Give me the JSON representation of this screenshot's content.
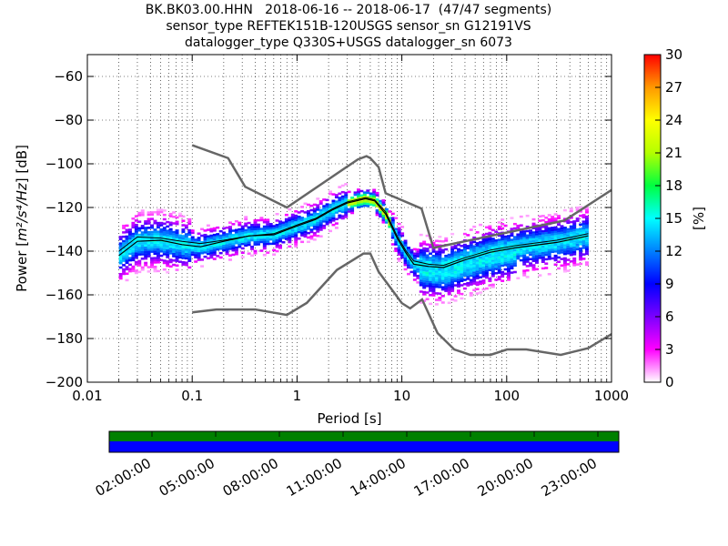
{
  "title_lines": [
    "BK.BK03.00.HHN   2018-06-16 -- 2018-06-17  (47/47 segments)",
    "sensor_type REFTEK151B-120USGS sensor_sn G12191VS",
    "datalogger_type Q330S+USGS datalogger_sn 6073"
  ],
  "chart_data": {
    "type": "heatmap",
    "xlabel": "Period [s]",
    "ylabel_prefix": "Power [",
    "ylabel_math": "m²/s⁴/Hz",
    "ylabel_suffix": "] [dB]",
    "x_scale": "log",
    "xlim": [
      0.01,
      1000
    ],
    "ylim": [
      -200,
      -50
    ],
    "x_ticks": [
      0.01,
      0.1,
      1,
      10,
      100,
      1000
    ],
    "x_tick_labels": [
      "0.01",
      "0.1",
      "1",
      "10",
      "100",
      "1000"
    ],
    "y_ticks": [
      -200,
      -180,
      -160,
      -140,
      -120,
      -100,
      -80,
      -60
    ],
    "y_tick_labels": [
      "−200",
      "−180",
      "−160",
      "−140",
      "−120",
      "−100",
      "−80",
      "−60"
    ],
    "grid": "dotted",
    "colorbar": {
      "label": "[%]",
      "range": [
        0,
        30
      ],
      "ticks": [
        0,
        3,
        6,
        9,
        12,
        15,
        18,
        21,
        24,
        27,
        30
      ],
      "tick_labels": [
        "0",
        "3",
        "6",
        "9",
        "12",
        "15",
        "18",
        "21",
        "24",
        "27",
        "30"
      ],
      "colors": [
        "#ffffff",
        "#ff00ff",
        "#7b00ff",
        "#0000ff",
        "#0080ff",
        "#00ffff",
        "#00ff40",
        "#b4ff00",
        "#ffff00",
        "#ff9900",
        "#ff0000"
      ]
    },
    "noise_model_high": [
      [
        0.1,
        -91.5
      ],
      [
        0.22,
        -97.4
      ],
      [
        0.32,
        -110.5
      ],
      [
        0.8,
        -120
      ],
      [
        3.8,
        -98
      ],
      [
        4.6,
        -96.5
      ],
      [
        5.0,
        -97.4
      ],
      [
        6.0,
        -101.5
      ],
      [
        7.0,
        -113.5
      ],
      [
        15.4,
        -120.5
      ],
      [
        20,
        -138.5
      ],
      [
        354,
        -126
      ],
      [
        1000,
        -112
      ]
    ],
    "noise_model_low": [
      [
        0.1,
        -168
      ],
      [
        0.17,
        -166.7
      ],
      [
        0.4,
        -166.7
      ],
      [
        0.8,
        -169.2
      ],
      [
        1.24,
        -163.7
      ],
      [
        2.4,
        -148.6
      ],
      [
        4.3,
        -141.1
      ],
      [
        5.0,
        -141.1
      ],
      [
        6.0,
        -149.4
      ],
      [
        10,
        -163.8
      ],
      [
        12,
        -166.2
      ],
      [
        15.6,
        -162.1
      ],
      [
        21.9,
        -177.5
      ],
      [
        31.6,
        -185
      ],
      [
        45,
        -187.5
      ],
      [
        70,
        -187.5
      ],
      [
        101,
        -185
      ],
      [
        154,
        -185
      ],
      [
        328,
        -187.5
      ],
      [
        600,
        -184.4
      ],
      [
        1000,
        -178
      ]
    ],
    "mode_curve": [
      [
        0.02,
        -142
      ],
      [
        0.03,
        -135.5
      ],
      [
        0.05,
        -135
      ],
      [
        0.08,
        -137
      ],
      [
        0.12,
        -138
      ],
      [
        0.2,
        -135.5
      ],
      [
        0.35,
        -133
      ],
      [
        0.6,
        -132.5
      ],
      [
        1,
        -128.5
      ],
      [
        1.5,
        -125.5
      ],
      [
        2.2,
        -121
      ],
      [
        3,
        -118
      ],
      [
        4.5,
        -116
      ],
      [
        5.5,
        -117
      ],
      [
        7,
        -123
      ],
      [
        9,
        -134
      ],
      [
        11,
        -141
      ],
      [
        13,
        -146
      ],
      [
        18,
        -147
      ],
      [
        25,
        -147.5
      ],
      [
        40,
        -144
      ],
      [
        70,
        -140.5
      ],
      [
        120,
        -138.5
      ],
      [
        300,
        -136
      ],
      [
        600,
        -133
      ]
    ],
    "mean_curve": [
      [
        0.02,
        -140
      ],
      [
        0.03,
        -133.5
      ],
      [
        0.05,
        -134
      ],
      [
        0.08,
        -135.5
      ],
      [
        0.12,
        -136.5
      ],
      [
        0.2,
        -135
      ],
      [
        0.35,
        -133
      ],
      [
        0.6,
        -132
      ],
      [
        1,
        -128
      ],
      [
        1.5,
        -125
      ],
      [
        2.2,
        -120.5
      ],
      [
        3,
        -117.5
      ],
      [
        4.5,
        -115.5
      ],
      [
        5.5,
        -116.5
      ],
      [
        7,
        -122
      ],
      [
        9,
        -133
      ],
      [
        11,
        -140
      ],
      [
        13,
        -144.5
      ],
      [
        18,
        -146
      ],
      [
        25,
        -146.5
      ],
      [
        40,
        -143
      ],
      [
        70,
        -139.5
      ],
      [
        120,
        -137.5
      ],
      [
        300,
        -135
      ],
      [
        600,
        -132
      ]
    ],
    "timeline": {
      "tick_labels": [
        "02:00:00",
        "05:00:00",
        "08:00:00",
        "11:00:00",
        "14:00:00",
        "17:00:00",
        "20:00:00",
        "23:00:00"
      ],
      "top_color": "#008000",
      "bottom_color": "#0000ff"
    }
  }
}
